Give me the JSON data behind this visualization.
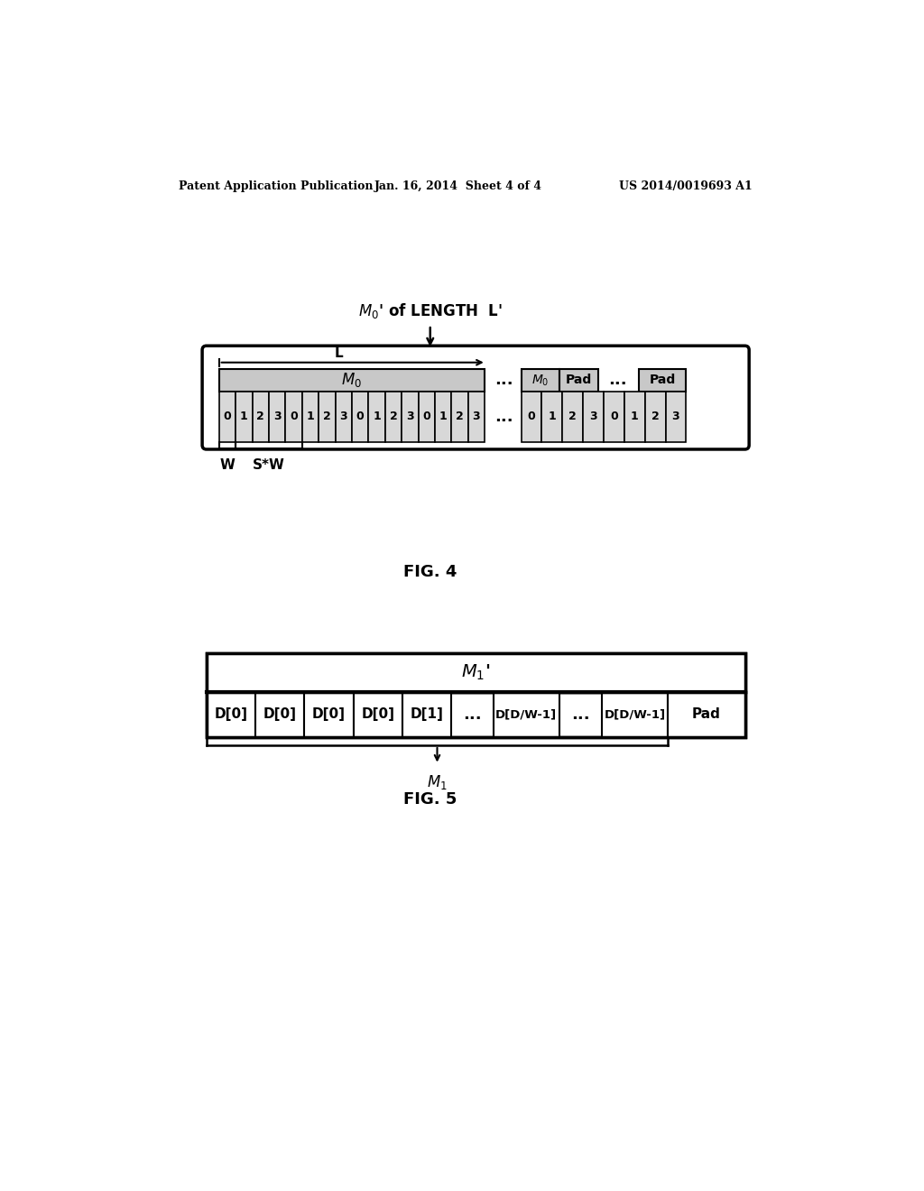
{
  "bg_color": "#ffffff",
  "header_text": "Patent Application Publication",
  "header_date": "Jan. 16, 2014  Sheet 4 of 4",
  "header_patent": "US 2014/0019693 A1",
  "fig4_label": "FIG. 4",
  "fig5_label": "FIG. 5",
  "fig4_cells_left": [
    "0",
    "1",
    "2",
    "3",
    "0",
    "1",
    "2",
    "3",
    "0",
    "1",
    "2",
    "3",
    "0",
    "1",
    "2",
    "3"
  ],
  "fig4_cells_right": [
    "0",
    "1",
    "2",
    "3",
    "0",
    "1",
    "2",
    "3"
  ],
  "fig5_cells": [
    "D[0]",
    "D[0]",
    "D[0]",
    "D[0]",
    "D[1]",
    "...",
    "D[D/W-1]",
    "...",
    "D[D/W-1]",
    "Pad"
  ]
}
